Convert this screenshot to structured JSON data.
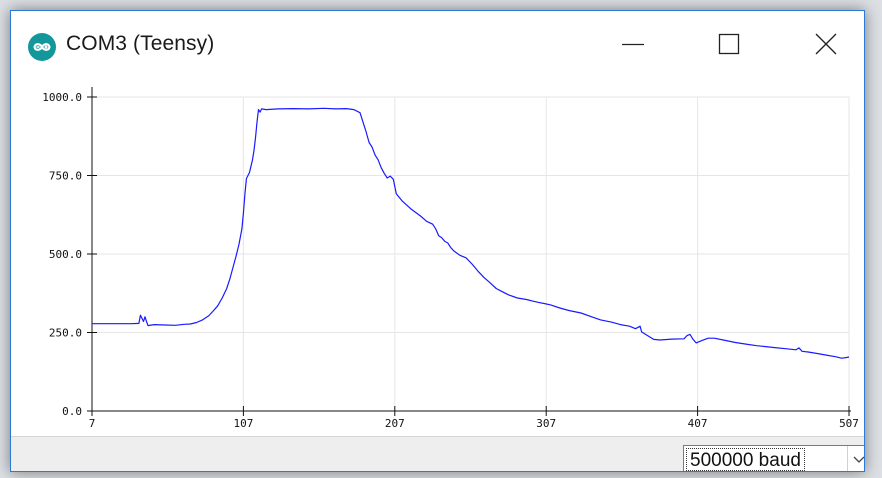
{
  "window": {
    "title": "COM3 (Teensy)",
    "icon": "arduino-infinity-icon",
    "controls": [
      "minimize-icon",
      "maximize-icon",
      "close-icon"
    ]
  },
  "colors": {
    "accent": "#14979a",
    "series": "#1a1aff",
    "grid": "#e6e6e6",
    "window_border": "#2b7bd6"
  },
  "baud_select": {
    "value": "500000 baud",
    "icon": "chevron-down-icon"
  },
  "chart_data": {
    "type": "line",
    "title": "",
    "xlabel": "",
    "ylabel": "",
    "xlim": [
      7,
      507
    ],
    "ylim": [
      0,
      1000
    ],
    "x_ticks": [
      "7",
      "107",
      "207",
      "307",
      "407",
      "507"
    ],
    "y_ticks": [
      "0.0",
      "250.0",
      "500.0",
      "750.0",
      "1000.0"
    ],
    "grid": true,
    "legend": "none",
    "series": [
      {
        "color": "#1a1aff",
        "points": [
          [
            7,
            278
          ],
          [
            20,
            278
          ],
          [
            33,
            278
          ],
          [
            38,
            279
          ],
          [
            39,
            305
          ],
          [
            40,
            295
          ],
          [
            41,
            285
          ],
          [
            42,
            300
          ],
          [
            43,
            285
          ],
          [
            44,
            272
          ],
          [
            48,
            275
          ],
          [
            55,
            274
          ],
          [
            62,
            273
          ],
          [
            68,
            276
          ],
          [
            72,
            277
          ],
          [
            76,
            282
          ],
          [
            80,
            290
          ],
          [
            84,
            303
          ],
          [
            87,
            318
          ],
          [
            90,
            335
          ],
          [
            93,
            360
          ],
          [
            96,
            390
          ],
          [
            98,
            420
          ],
          [
            100,
            455
          ],
          [
            102,
            490
          ],
          [
            104,
            530
          ],
          [
            106,
            580
          ],
          [
            107,
            630
          ],
          [
            108,
            690
          ],
          [
            109,
            740
          ],
          [
            111,
            760
          ],
          [
            113,
            800
          ],
          [
            114,
            830
          ],
          [
            115,
            870
          ],
          [
            116,
            920
          ],
          [
            117,
            960
          ],
          [
            118,
            952
          ],
          [
            119,
            962
          ],
          [
            122,
            960
          ],
          [
            130,
            962
          ],
          [
            140,
            963
          ],
          [
            150,
            962
          ],
          [
            160,
            964
          ],
          [
            168,
            962
          ],
          [
            175,
            963
          ],
          [
            180,
            960
          ],
          [
            184,
            950
          ],
          [
            186,
            920
          ],
          [
            188,
            890
          ],
          [
            190,
            855
          ],
          [
            192,
            840
          ],
          [
            194,
            815
          ],
          [
            196,
            800
          ],
          [
            198,
            775
          ],
          [
            200,
            757
          ],
          [
            202,
            742
          ],
          [
            204,
            748
          ],
          [
            206,
            738
          ],
          [
            208,
            692
          ],
          [
            212,
            668
          ],
          [
            218,
            642
          ],
          [
            224,
            621
          ],
          [
            228,
            604
          ],
          [
            232,
            595
          ],
          [
            234,
            580
          ],
          [
            236,
            558
          ],
          [
            238,
            552
          ],
          [
            240,
            540
          ],
          [
            242,
            535
          ],
          [
            244,
            520
          ],
          [
            246,
            510
          ],
          [
            250,
            496
          ],
          [
            254,
            488
          ],
          [
            258,
            468
          ],
          [
            262,
            445
          ],
          [
            266,
            425
          ],
          [
            270,
            408
          ],
          [
            274,
            390
          ],
          [
            278,
            380
          ],
          [
            282,
            370
          ],
          [
            288,
            360
          ],
          [
            294,
            355
          ],
          [
            298,
            350
          ],
          [
            302,
            346
          ],
          [
            306,
            342
          ],
          [
            310,
            338
          ],
          [
            316,
            328
          ],
          [
            322,
            320
          ],
          [
            330,
            312
          ],
          [
            337,
            300
          ],
          [
            343,
            290
          ],
          [
            350,
            283
          ],
          [
            356,
            275
          ],
          [
            362,
            270
          ],
          [
            366,
            262
          ],
          [
            369,
            270
          ],
          [
            370,
            252
          ],
          [
            374,
            240
          ],
          [
            378,
            228
          ],
          [
            382,
            226
          ],
          [
            390,
            229
          ],
          [
            398,
            230
          ],
          [
            400,
            240
          ],
          [
            402,
            244
          ],
          [
            404,
            228
          ],
          [
            406,
            217
          ],
          [
            410,
            225
          ],
          [
            414,
            232
          ],
          [
            418,
            232
          ],
          [
            424,
            226
          ],
          [
            432,
            218
          ],
          [
            440,
            212
          ],
          [
            446,
            208
          ],
          [
            452,
            205
          ],
          [
            458,
            202
          ],
          [
            466,
            198
          ],
          [
            472,
            195
          ],
          [
            474,
            201
          ],
          [
            476,
            190
          ],
          [
            480,
            188
          ],
          [
            486,
            183
          ],
          [
            492,
            178
          ],
          [
            498,
            173
          ],
          [
            502,
            168
          ],
          [
            505,
            170
          ],
          [
            507,
            172
          ]
        ]
      }
    ]
  }
}
